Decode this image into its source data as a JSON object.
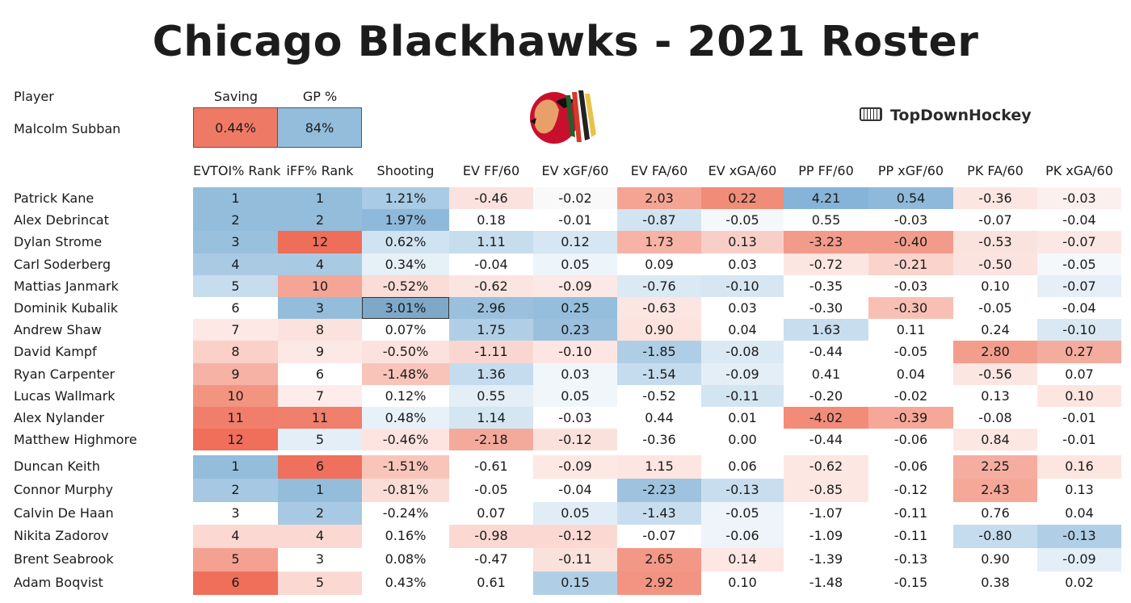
{
  "title": "Chicago Blackhawks - 2021 Roster",
  "brand": "TopDownHockey",
  "goalie": {
    "header_player": "Player",
    "header_saving": "Saving",
    "header_gp": "GP %",
    "name": "Malcolm Subban",
    "saving": "0.44%",
    "gp": "84%",
    "saving_color": "#ee7a66",
    "gp_color": "#93bddb"
  },
  "columns": [
    "EVTOI% Rank",
    "iFF% Rank",
    "Shooting",
    "EV FF/60",
    "EV xGF/60",
    "EV FA/60",
    "EV xGA/60",
    "PP FF/60",
    "PP xGF/60",
    "PK FA/60",
    "PK xGA/60"
  ],
  "forwards": [
    {
      "name": "Patrick Kane",
      "values": [
        "1",
        "1",
        "1.21%",
        "-0.46",
        "-0.02",
        "2.03",
        "0.22",
        "4.21",
        "0.54",
        "-0.36",
        "-0.03"
      ],
      "colors": [
        "#93bddb",
        "#93bddb",
        "#a9cbe5",
        "#fbe2de",
        "#f9f9f9",
        "#f5a494",
        "#f08c78",
        "#86b4d8",
        "#8fb9da",
        "#fbe6e2",
        "#fbf0ee"
      ]
    },
    {
      "name": "Alex Debrincat",
      "values": [
        "2",
        "2",
        "1.97%",
        "0.18",
        "-0.01",
        "-0.87",
        "-0.05",
        "0.55",
        "-0.03",
        "-0.07",
        "-0.04"
      ],
      "colors": [
        "#93bddb",
        "#93bddb",
        "#8fb9da",
        "#ffffff",
        "#ffffff",
        "#d2e4f1",
        "#f5f8fb",
        "#ffffff",
        "#ffffff",
        "#ffffff",
        "#ffffff"
      ]
    },
    {
      "name": "Dylan Strome",
      "values": [
        "3",
        "12",
        "0.62%",
        "1.11",
        "0.12",
        "1.73",
        "0.13",
        "-3.23",
        "-0.40",
        "-0.53",
        "-0.07"
      ],
      "colors": [
        "#99c0dd",
        "#ee6e59",
        "#d0e3f1",
        "#c6ddee",
        "#d6e7f3",
        "#f7b3a6",
        "#f8cfc6",
        "#f29b8a",
        "#f39b8a",
        "#fae2dd",
        "#fbe8e4"
      ]
    },
    {
      "name": "Carl Soderberg",
      "values": [
        "4",
        "4",
        "0.34%",
        "-0.04",
        "0.05",
        "0.09",
        "0.03",
        "-0.72",
        "-0.21",
        "-0.50",
        "-0.05"
      ],
      "colors": [
        "#aacae4",
        "#a9cae3",
        "#e6f0f7",
        "#ffffff",
        "#edf4fa",
        "#ffffff",
        "#ffffff",
        "#fce6e2",
        "#fad4cc",
        "#fbe3df",
        "#f4f8fb"
      ]
    },
    {
      "name": "Mattias Janmark",
      "values": [
        "5",
        "10",
        "-0.52%",
        "-0.62",
        "-0.09",
        "-0.76",
        "-0.10",
        "-0.35",
        "-0.03",
        "0.10",
        "-0.07"
      ],
      "colors": [
        "#c7dcee",
        "#f4a595",
        "#fcdcd6",
        "#fbe5e1",
        "#fce8e5",
        "#dbe9f4",
        "#d6e6f2",
        "#ffffff",
        "#ffffff",
        "#ffffff",
        "#e6eff7"
      ]
    },
    {
      "name": "Dominik Kubalik",
      "values": [
        "6",
        "3",
        "3.01%",
        "2.96",
        "0.25",
        "-0.63",
        "0.03",
        "-0.30",
        "-0.30",
        "-0.05",
        "-0.04"
      ],
      "colors": [
        "#ffffff",
        "#93bddb",
        "#7da8c8",
        "#9ac0dd",
        "#95bedc",
        "#fbe6e2",
        "#ffffff",
        "#ffffff",
        "#f8c0b4",
        "#ffffff",
        "#ffffff"
      ]
    },
    {
      "name": "Andrew Shaw",
      "values": [
        "7",
        "8",
        "0.07%",
        "1.75",
        "0.23",
        "0.90",
        "0.04",
        "1.63",
        "0.11",
        "0.24",
        "-0.10"
      ],
      "colors": [
        "#fde8e5",
        "#fce2de",
        "#ffffff",
        "#b0cfe6",
        "#9ac0dd",
        "#fde3de",
        "#ffffff",
        "#c8deef",
        "#ffffff",
        "#ffffff",
        "#d9e8f3"
      ]
    },
    {
      "name": "David Kampf",
      "values": [
        "8",
        "9",
        "-0.50%",
        "-1.11",
        "-0.10",
        "-1.85",
        "-0.08",
        "-0.44",
        "-0.05",
        "2.80",
        "0.27"
      ],
      "colors": [
        "#fad0c8",
        "#fce8e5",
        "#fce2de",
        "#f9d7d0",
        "#fde6e2",
        "#afcee6",
        "#dbe9f4",
        "#ffffff",
        "#ffffff",
        "#f39e8d",
        "#f4ac9e"
      ]
    },
    {
      "name": "Ryan Carpenter",
      "values": [
        "9",
        "6",
        "-1.48%",
        "1.36",
        "0.03",
        "-1.54",
        "-0.09",
        "0.41",
        "0.04",
        "-0.56",
        "0.07"
      ],
      "colors": [
        "#f6b2a4",
        "#ffffff",
        "#f8c4b9",
        "#c5dcee",
        "#f1f6fb",
        "#c5dcee",
        "#e3eef7",
        "#ffffff",
        "#ffffff",
        "#fbe6e2",
        "#ffffff"
      ]
    },
    {
      "name": "Lucas Wallmark",
      "values": [
        "10",
        "7",
        "0.12%",
        "0.55",
        "0.05",
        "-0.52",
        "-0.11",
        "-0.20",
        "-0.02",
        "0.13",
        "0.10"
      ],
      "colors": [
        "#f39481",
        "#fdece9",
        "#ffffff",
        "#e3eef7",
        "#f0f6fa",
        "#ffffff",
        "#d4e5f2",
        "#ffffff",
        "#ffffff",
        "#ffffff",
        "#fde5e0"
      ]
    },
    {
      "name": "Alex Nylander",
      "values": [
        "11",
        "11",
        "0.48%",
        "1.14",
        "-0.03",
        "0.44",
        "0.01",
        "-4.02",
        "-0.39",
        "-0.08",
        "-0.01"
      ],
      "colors": [
        "#f07e6a",
        "#f07f6b",
        "#e7f1f8",
        "#d4e6f2",
        "#ffffff",
        "#ffffff",
        "#ffffff",
        "#f28c79",
        "#f6a797",
        "#ffffff",
        "#ffffff"
      ]
    },
    {
      "name": "Matthew Highmore",
      "values": [
        "12",
        "5",
        "-0.46%",
        "-2.18",
        "-0.12",
        "-0.36",
        "0.00",
        "-0.44",
        "-0.06",
        "0.84",
        "-0.01"
      ],
      "colors": [
        "#ef6f5a",
        "#e4eef7",
        "#fde4e0",
        "#f4aa9b",
        "#fbe1dc",
        "#ffffff",
        "#ffffff",
        "#ffffff",
        "#ffffff",
        "#fde7e3",
        "#ffffff"
      ]
    }
  ],
  "defense": [
    {
      "name": "Duncan Keith",
      "values": [
        "1",
        "6",
        "-1.51%",
        "-0.61",
        "-0.09",
        "1.15",
        "0.06",
        "-0.62",
        "-0.06",
        "2.25",
        "0.16"
      ],
      "colors": [
        "#93bddb",
        "#ef705c",
        "#f9c5ba",
        "#ffffff",
        "#fde8e4",
        "#fde5e1",
        "#ffffff",
        "#fde7e3",
        "#ffffff",
        "#f5ad9f",
        "#fde5e0"
      ]
    },
    {
      "name": "Connor Murphy",
      "values": [
        "2",
        "1",
        "-0.81%",
        "-0.05",
        "-0.04",
        "-2.23",
        "-0.13",
        "-0.85",
        "-0.12",
        "2.43",
        "0.13"
      ],
      "colors": [
        "#a6c8e2",
        "#93bddb",
        "#fbddd7",
        "#ffffff",
        "#ffffff",
        "#9fc3df",
        "#c8deef",
        "#fde7e3",
        "#ffffff",
        "#f5a798",
        "#ffffff"
      ]
    },
    {
      "name": "Calvin De Haan",
      "values": [
        "3",
        "2",
        "-0.24%",
        "0.07",
        "0.05",
        "-1.43",
        "-0.05",
        "-1.07",
        "-0.11",
        "0.76",
        "0.04"
      ],
      "colors": [
        "#ffffff",
        "#a8c9e3",
        "#ffffff",
        "#ffffff",
        "#e1edf6",
        "#c8deef",
        "#eef4fa",
        "#ffffff",
        "#ffffff",
        "#ffffff",
        "#ffffff"
      ]
    },
    {
      "name": "Nikita Zadorov",
      "values": [
        "4",
        "4",
        "0.16%",
        "-0.98",
        "-0.12",
        "-0.07",
        "-0.06",
        "-1.09",
        "-0.11",
        "-0.80",
        "-0.13"
      ],
      "colors": [
        "#fbd9d2",
        "#fbd9d2",
        "#ffffff",
        "#fbd9d2",
        "#fbd9d2",
        "#ffffff",
        "#eef4fa",
        "#ffffff",
        "#ffffff",
        "#c5dcee",
        "#b0cfe6"
      ]
    },
    {
      "name": "Brent Seabrook",
      "values": [
        "5",
        "3",
        "0.08%",
        "-0.47",
        "-0.11",
        "2.65",
        "0.14",
        "-1.39",
        "-0.13",
        "0.90",
        "-0.09"
      ],
      "colors": [
        "#f4a191",
        "#ffffff",
        "#ffffff",
        "#ffffff",
        "#fbe1dc",
        "#f39886",
        "#fde7e3",
        "#ffffff",
        "#ffffff",
        "#ffffff",
        "#e4eef7"
      ]
    },
    {
      "name": "Adam Boqvist",
      "values": [
        "6",
        "5",
        "0.43%",
        "0.61",
        "0.15",
        "2.92",
        "0.10",
        "-1.48",
        "-0.15",
        "0.38",
        "0.02"
      ],
      "colors": [
        "#ef6f5a",
        "#fbd9d2",
        "#ffffff",
        "#ffffff",
        "#b0cfe6",
        "#f39482",
        "#ffffff",
        "#ffffff",
        "#ffffff",
        "#ffffff",
        "#ffffff"
      ]
    }
  ]
}
